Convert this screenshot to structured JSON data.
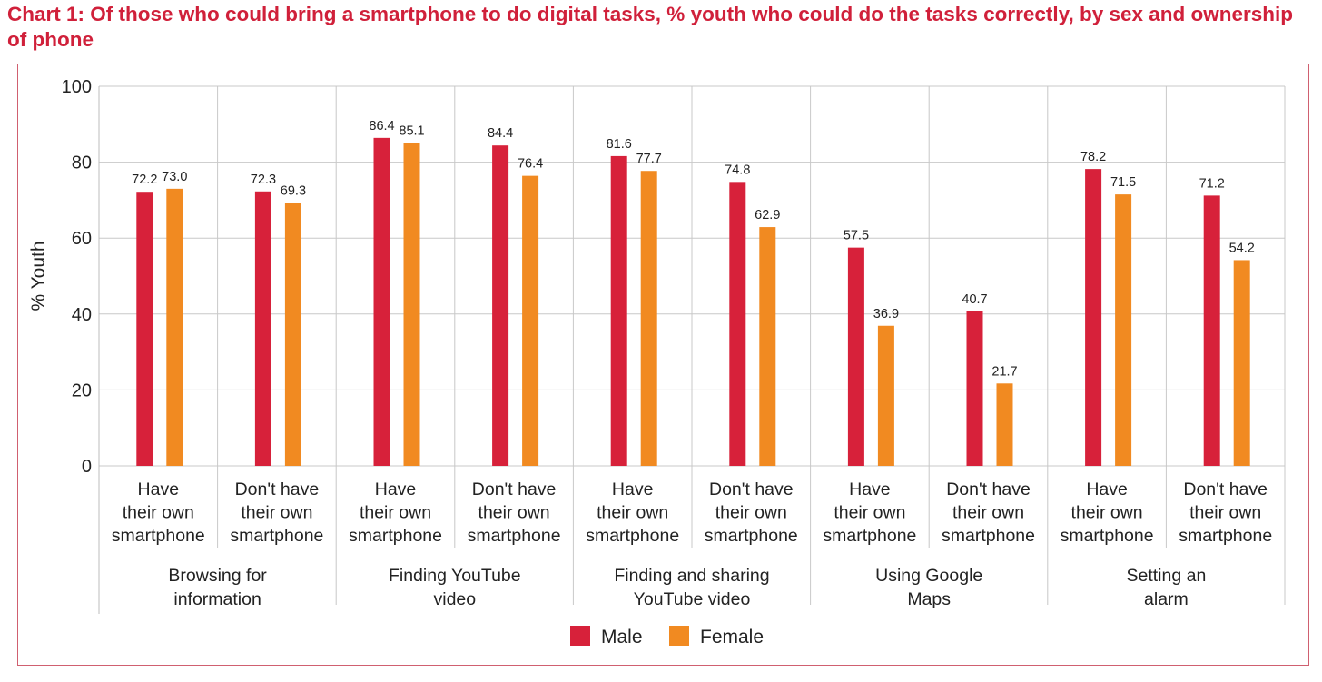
{
  "chart_data": {
    "type": "bar",
    "title": "Chart 1: Of those who could bring a smartphone to do digital tasks, % youth who could do the tasks correctly, by sex and ownership of phone",
    "ylabel": "% Youth",
    "ylim": [
      0,
      100
    ],
    "yticks": [
      0,
      20,
      40,
      60,
      80,
      100
    ],
    "grid": true,
    "legend_position": "bottom-center",
    "groups": [
      {
        "label": "Browsing for information",
        "label_lines": [
          "Browsing for",
          "information"
        ],
        "subcategories": [
          {
            "label_lines": [
              "Have",
              "their own",
              "smartphone"
            ],
            "values": [
              72.2,
              73.0
            ],
            "labels": [
              "72.2",
              "73.0"
            ]
          },
          {
            "label_lines": [
              "Don't have",
              "their own",
              "smartphone"
            ],
            "values": [
              72.3,
              69.3
            ],
            "labels": [
              "72.3",
              "69.3"
            ]
          }
        ]
      },
      {
        "label": "Finding YouTube video",
        "label_lines": [
          "Finding YouTube",
          "video"
        ],
        "subcategories": [
          {
            "label_lines": [
              "Have",
              "their own",
              "smartphone"
            ],
            "values": [
              86.4,
              85.1
            ],
            "labels": [
              "86.4",
              "85.1"
            ]
          },
          {
            "label_lines": [
              "Don't have",
              "their own",
              "smartphone"
            ],
            "values": [
              84.4,
              76.4
            ],
            "labels": [
              "84.4",
              "76.4"
            ]
          }
        ]
      },
      {
        "label": "Finding and sharing YouTube video",
        "label_lines": [
          "Finding and sharing",
          "YouTube video"
        ],
        "subcategories": [
          {
            "label_lines": [
              "Have",
              "their own",
              "smartphone"
            ],
            "values": [
              81.6,
              77.7
            ],
            "labels": [
              "81.6",
              "77.7"
            ]
          },
          {
            "label_lines": [
              "Don't have",
              "their own",
              "smartphone"
            ],
            "values": [
              74.8,
              62.9
            ],
            "labels": [
              "74.8",
              "62.9"
            ]
          }
        ]
      },
      {
        "label": "Using Google Maps",
        "label_lines": [
          "Using Google",
          "Maps"
        ],
        "subcategories": [
          {
            "label_lines": [
              "Have",
              "their own",
              "smartphone"
            ],
            "values": [
              57.5,
              36.9
            ],
            "labels": [
              "57.5",
              "36.9"
            ]
          },
          {
            "label_lines": [
              "Don't have",
              "their own",
              "smartphone"
            ],
            "values": [
              40.7,
              21.7
            ],
            "labels": [
              "40.7",
              "21.7"
            ]
          }
        ]
      },
      {
        "label": "Setting an alarm",
        "label_lines": [
          "Setting an",
          "alarm"
        ],
        "subcategories": [
          {
            "label_lines": [
              "Have",
              "their own",
              "smartphone"
            ],
            "values": [
              78.2,
              71.5
            ],
            "labels": [
              "78.2",
              "71.5"
            ]
          },
          {
            "label_lines": [
              "Don't have",
              "their own",
              "smartphone"
            ],
            "values": [
              71.2,
              54.2
            ],
            "labels": [
              "71.2",
              "54.2"
            ]
          }
        ]
      }
    ],
    "series": [
      {
        "name": "Male",
        "color": "#d7213a"
      },
      {
        "name": "Female",
        "color": "#f18a21"
      }
    ]
  }
}
